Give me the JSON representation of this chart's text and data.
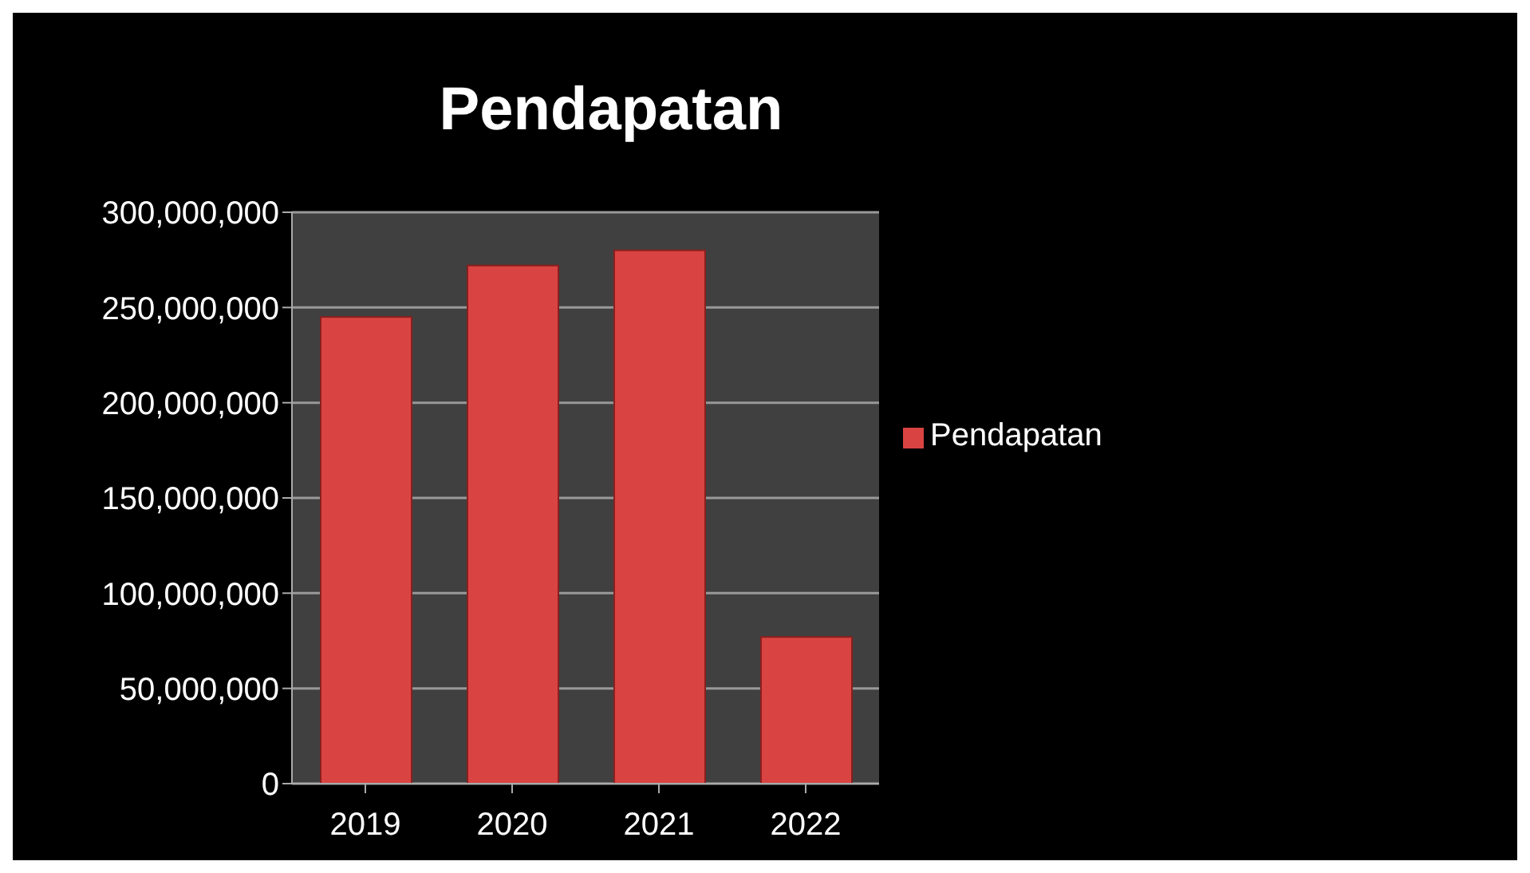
{
  "chart_data": {
    "type": "bar",
    "title": "Pendapatan",
    "categories": [
      "2019",
      "2020",
      "2021",
      "2022"
    ],
    "series": [
      {
        "name": "Pendapatan",
        "color": "#d94442",
        "values": [
          245000000,
          272000000,
          280000000,
          77000000
        ]
      }
    ],
    "ylim": [
      0,
      300000000
    ],
    "yticks": [
      0,
      {
        "value": 50000000,
        "label": "50,000,000"
      },
      {
        "value": 100000000,
        "label": "100,000,000"
      },
      {
        "value": 150000000,
        "label": "150,000,000"
      },
      {
        "value": 200000000,
        "label": "200,000,000"
      },
      {
        "value": 250000000,
        "label": "250,000,000"
      },
      {
        "value": 300000000,
        "label": "300,000,000"
      }
    ],
    "grid": "y",
    "legend": "right"
  }
}
